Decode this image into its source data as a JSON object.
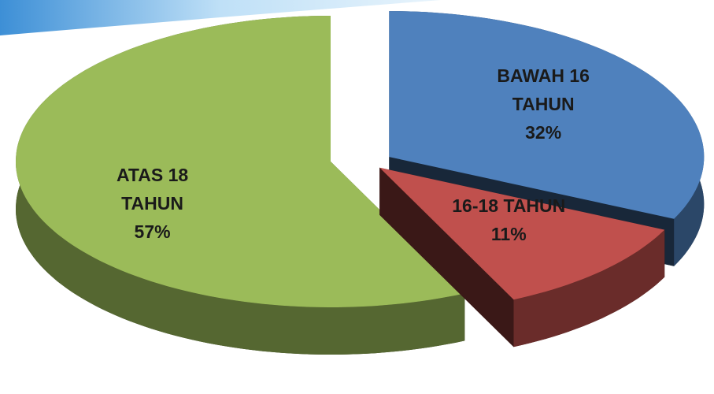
{
  "chart_data": {
    "type": "pie",
    "categories": [
      "BAWAH 16 TAHUN",
      "16-18 TAHUN",
      "ATAS 18 TAHUN"
    ],
    "values": [
      32,
      11,
      57
    ],
    "value_labels": [
      "32%",
      "11%",
      "57%"
    ],
    "colors": [
      "#4f81bd",
      "#c0504d",
      "#9bbb59"
    ]
  }
}
